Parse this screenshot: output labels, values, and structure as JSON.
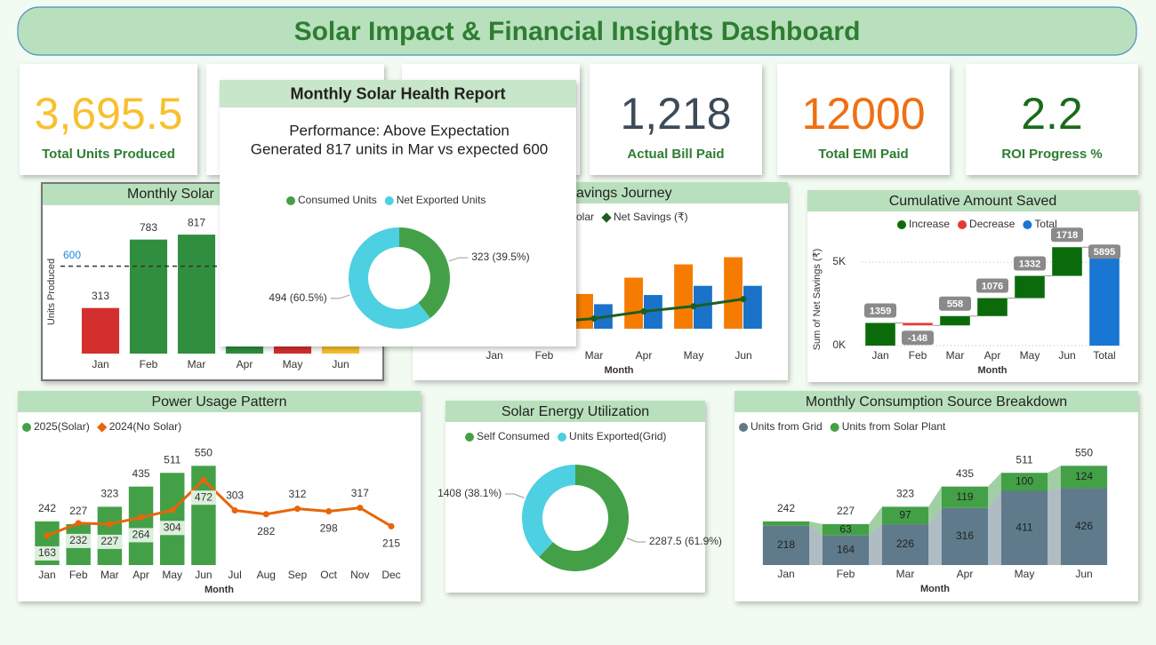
{
  "title": "Solar Impact & Financial Insights Dashboard",
  "kpis": [
    {
      "value": "3,695.5",
      "label": "Total Units Produced",
      "color": "#f9c02e"
    },
    {
      "value": "1,218",
      "label": "Actual Bill Paid",
      "color": "#3d4a57"
    },
    {
      "value": "12000",
      "label": "Total EMI Paid",
      "color": "#ef7014"
    },
    {
      "value": "2.2",
      "label": "ROI Progress %",
      "color": "#1a6b1a"
    }
  ],
  "chart_data": [
    {
      "type": "bar",
      "title": "Monthly Solar",
      "y_label": "Units Produced",
      "categories": [
        "Jan",
        "Feb",
        "Mar",
        "Apr",
        "May",
        "Jun"
      ],
      "values": [
        313,
        783,
        817,
        720,
        480,
        582.5
      ],
      "colors": [
        "#d32f2f",
        "#2f8f3f",
        "#2f8f3f",
        "#2f8f3f",
        "#d32f2f",
        "#fbc02d"
      ],
      "reference_line": 600,
      "ylim": [
        0,
        970
      ]
    },
    {
      "type": "combo",
      "title": "avings Journey",
      "x_label": "Month",
      "categories": [
        "Jan",
        "Feb",
        "Mar",
        "Apr",
        "May",
        "Jun"
      ],
      "series": [
        {
          "name": "olar",
          "color": "#f57c00",
          "kind": "bar",
          "values": [
            20,
            28,
            34,
            50,
            63,
            70
          ]
        },
        {
          "color": "#1a73c8",
          "kind": "bar",
          "values": [
            15,
            20,
            24,
            33,
            42,
            42
          ]
        },
        {
          "name": "Net Savings (₹)",
          "color": "#1b5e20",
          "kind": "line",
          "values": [
            3,
            6,
            10,
            17,
            22,
            29
          ]
        }
      ],
      "ylim": [
        0,
        100
      ]
    },
    {
      "type": "waterfall",
      "title": "Cumulative Amount Saved",
      "y_label": "Sum of Net Savings (₹)",
      "x_label": "Month",
      "categories": [
        "Jan",
        "Feb",
        "Mar",
        "Apr",
        "May",
        "Jun",
        "Total"
      ],
      "values": [
        1359,
        -148,
        558,
        1076,
        1332,
        1718,
        5895
      ],
      "legend": [
        {
          "name": "Increase",
          "color": "#0b6b0b"
        },
        {
          "name": "Decrease",
          "color": "#e53935"
        },
        {
          "name": "Total",
          "color": "#1976d2"
        }
      ],
      "ylim": [
        0,
        6600
      ],
      "yticks": [
        {
          "value": 0,
          "label": "0K"
        },
        {
          "value": 5000,
          "label": "5K"
        }
      ],
      "grid": true
    },
    {
      "type": "combo",
      "title": "Power Usage Pattern",
      "x_label": "Month",
      "data_labels": true,
      "categories": [
        "Jan",
        "Feb",
        "Mar",
        "Apr",
        "May",
        "Jun",
        "Jul",
        "Aug",
        "Sep",
        "Oct",
        "Nov",
        "Dec"
      ],
      "series": [
        {
          "name": "2025(Solar)",
          "color": "#43a047",
          "kind": "bar",
          "values": [
            242,
            227,
            323,
            435,
            511,
            550,
            null,
            null,
            null,
            null,
            null,
            null
          ]
        },
        {
          "name": "2024(No Solar)",
          "color": "#e8650a",
          "kind": "line",
          "values": [
            163,
            232,
            227,
            264,
            304,
            472,
            303,
            282,
            312,
            298,
            317,
            215
          ]
        }
      ],
      "ylim": [
        0,
        660
      ]
    },
    {
      "type": "pie",
      "title": "Solar Energy Utilization",
      "categories": [
        "Self Consumed",
        "Units Exported(Grid)"
      ],
      "values": [
        2287.5,
        1408
      ],
      "value_labels": [
        "2287.5 (61.9%)",
        "1408 (38.1%)"
      ],
      "colors": [
        "#43a047",
        "#4dd0e1"
      ]
    },
    {
      "type": "ribbon",
      "title": "Monthly Consumption Source Breakdown",
      "x_label": "Month",
      "categories": [
        "Jan",
        "Feb",
        "Mar",
        "Apr",
        "May",
        "Jun"
      ],
      "series": [
        {
          "name": "Units from Grid",
          "color": "#5f7a8a",
          "values": [
            218,
            164,
            226,
            316,
            411,
            426
          ]
        },
        {
          "name": "Units from Solar Plant",
          "color": "#43a047",
          "values": [
            24,
            63,
            97,
            119,
            100,
            124
          ],
          "value_labels": [
            null,
            "63",
            "97",
            "119",
            "100",
            "124"
          ]
        }
      ],
      "totals": [
        242,
        227,
        323,
        435,
        511,
        550
      ],
      "ylim": [
        0,
        640
      ]
    }
  ],
  "popup": {
    "title": "Monthly Solar Health Report",
    "lines": [
      "Performance: Above Expectation",
      "Generated 817 units in Mar vs expected 600"
    ],
    "chart": {
      "type": "pie",
      "categories": [
        "Consumed Units",
        "Net Exported Units"
      ],
      "values": [
        323,
        494
      ],
      "value_labels": [
        "323 (39.5%)",
        "494 (60.5%)"
      ],
      "colors": [
        "#43a047",
        "#4dd0e1"
      ]
    }
  }
}
